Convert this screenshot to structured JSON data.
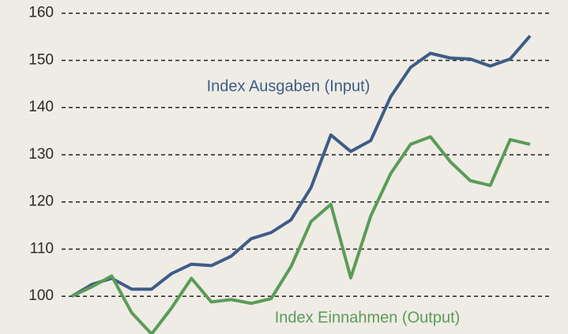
{
  "chart_data": {
    "type": "line",
    "categories": [
      null,
      null,
      null,
      null,
      null,
      null,
      null,
      null,
      null,
      null,
      null,
      null,
      null,
      null,
      null,
      null,
      null,
      null,
      null,
      null,
      null,
      null,
      null,
      null
    ],
    "series": [
      {
        "name": "Index Ausgaben (Input)",
        "color": "#3e5c87",
        "values": [
          100,
          102.5,
          103.8,
          101.5,
          101.5,
          104.8,
          106.8,
          106.5,
          108.5,
          112.2,
          113.5,
          116.2,
          123,
          134.2,
          130.7,
          133,
          142.3,
          148.5,
          151.5,
          150.5,
          150.3,
          148.8,
          150.3,
          155.2
        ]
      },
      {
        "name": "Index Einnahmen (Output)",
        "color": "#5a9c57",
        "values": [
          100,
          102,
          104.3,
          96.5,
          92,
          97.5,
          103.8,
          98.8,
          99.3,
          98.5,
          99.5,
          106.3,
          115.8,
          119.5,
          103.9,
          117,
          126,
          132.2,
          133.8,
          128.5,
          124.5,
          123.5,
          133.2,
          132.2
        ]
      }
    ],
    "ylim": [
      92,
      162.8
    ],
    "yticks": [
      100,
      110,
      120,
      130,
      140,
      150,
      160
    ],
    "grid": true
  }
}
